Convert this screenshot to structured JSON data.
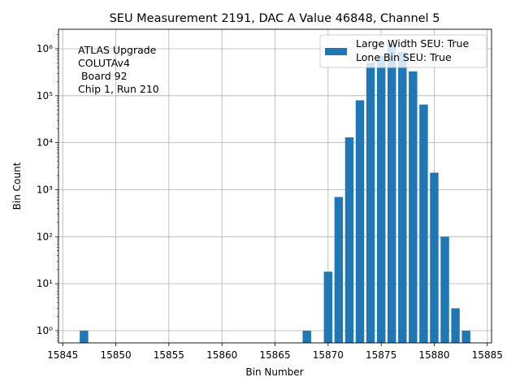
{
  "chart_data": {
    "type": "bar",
    "title": "SEU Measurement 2191, DAC A Value 46848, Channel 5",
    "xlabel": "Bin Number",
    "ylabel": "Bin Count",
    "yscale": "log",
    "xlim": [
      15844.6,
      15885.4
    ],
    "ylim": [
      0.55,
      2600000
    ],
    "grid": true,
    "legend_position": "top-right",
    "legend_entries": [
      "Large Width SEU: True",
      "Lone Bin SEU: True"
    ],
    "bar_color": "#1f77b4",
    "annotation_lines": [
      "ATLAS Upgrade",
      "COLUTAv4",
      " Board 92",
      "Chip 1, Run 210"
    ],
    "x_ticks": [
      15845,
      15850,
      15855,
      15860,
      15865,
      15870,
      15875,
      15880,
      15885
    ],
    "x_tick_labels": [
      "15845",
      "15850",
      "15855",
      "15860",
      "15865",
      "15870",
      "15875",
      "15880",
      "15885"
    ],
    "y_ticks": [
      1,
      10,
      100,
      1000,
      10000,
      100000,
      1000000
    ],
    "y_tick_labels": [
      "10⁰",
      "10¹",
      "10²",
      "10³",
      "10⁴",
      "10⁵",
      "10⁶"
    ],
    "bins": [
      15847,
      15868,
      15870,
      15871,
      15872,
      15873,
      15874,
      15875,
      15876,
      15877,
      15878,
      15879,
      15880,
      15881,
      15882,
      15883
    ],
    "values": [
      1,
      1,
      18,
      700,
      13000,
      80000,
      500000,
      700000,
      1300000,
      850000,
      330000,
      65000,
      2300,
      100,
      3,
      1
    ]
  }
}
